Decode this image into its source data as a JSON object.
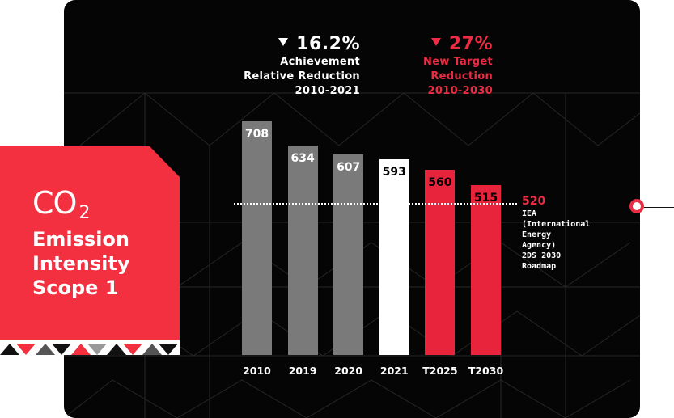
{
  "chart_data": {
    "type": "bar",
    "categories": [
      "2010",
      "2019",
      "2020",
      "2021",
      "T2025",
      "T2030"
    ],
    "values": [
      708,
      634,
      607,
      593,
      560,
      515
    ],
    "bar_colors": [
      "#7a7a7a",
      "#7a7a7a",
      "#7a7a7a",
      "#ffffff",
      "#e8243d",
      "#e8243d"
    ],
    "value_label_colors": [
      "#ffffff",
      "#ffffff",
      "#ffffff",
      "#000000",
      "#000000",
      "#000000"
    ],
    "ylim": [
      0,
      708
    ],
    "reference_line": {
      "value": 520,
      "label": "520",
      "note": "IEA\n(International\nEnergy\nAgency)\n2DS 2030\nRoadmap"
    }
  },
  "achievement": {
    "value": "16.2%",
    "line1": "Achievement",
    "line2": "Relative Reduction",
    "line3": "2010-2021"
  },
  "target": {
    "value": "27%",
    "line1": "New Target",
    "line2": "Reduction",
    "line3": "2010-2030"
  },
  "badge": {
    "co": "CO",
    "sub": "2",
    "line1": "Emission",
    "line2": "Intensity",
    "line3": "Scope 1"
  },
  "colors": {
    "accent_red": "#ec2b45",
    "badge_red": "#f2303f",
    "bar_gray": "#7a7a7a",
    "panel_bg": "#050505"
  }
}
